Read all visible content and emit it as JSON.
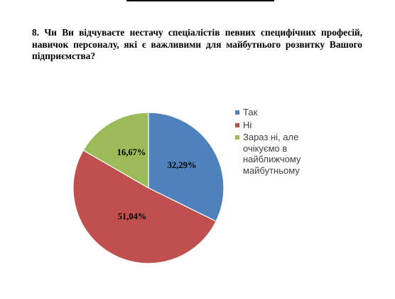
{
  "question": {
    "text": "8. Чи Ви відчуваєте нестачу спеціалістів певних специфічних професій, навичок персоналу, які є важливими для майбутнього розвитку Вашого підприємства?"
  },
  "chart_data": {
    "type": "pie",
    "title": "",
    "slices": [
      {
        "label": "Так",
        "value": 32.29,
        "display": "32,29%",
        "color": "#4f81bd"
      },
      {
        "label": "Ні",
        "value": 51.04,
        "display": "51,04%",
        "color": "#c0504d"
      },
      {
        "label": "Зараз ні, але очікуємо в найближчому майбутньому",
        "value": 16.67,
        "display": "16,67%",
        "color": "#9bbb59"
      }
    ],
    "legend_position": "right"
  }
}
